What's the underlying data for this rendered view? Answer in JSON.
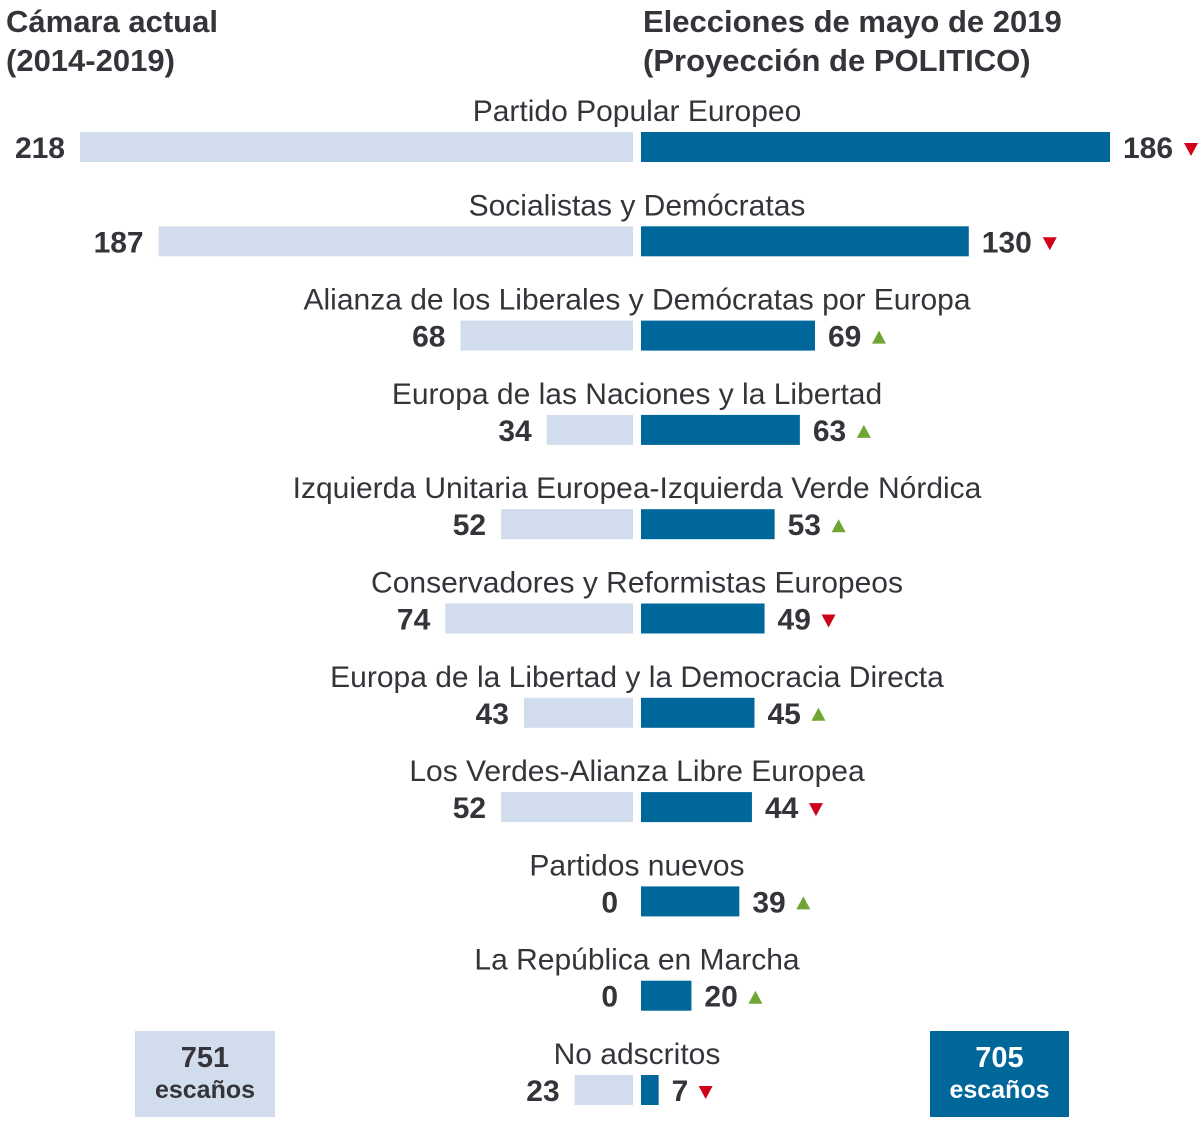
{
  "header": {
    "left_line1": "Cámara actual",
    "left_line2": "(2014-2019)",
    "right_line1": "Elecciones de mayo de 2019",
    "right_line2": "(Proyección de POLITICO)"
  },
  "colors": {
    "current": "#d1ddec",
    "projection": "#00679b",
    "up": "#6fa533",
    "down": "#d0021b",
    "text": "#35343a"
  },
  "totals": {
    "current_value": "751",
    "current_label": "escaños",
    "projection_value": "705",
    "projection_label": "escaños"
  },
  "chart_data": {
    "type": "bar",
    "orientation": "horizontal-butterfly",
    "categories": [
      "Partido Popular Europeo",
      "Socialistas y Demócratas",
      "Alianza de los Liberales y Demócratas por Europa",
      "Europa de las Naciones y la Libertad",
      "Izquierda Unitaria Europea-Izquierda Verde Nórdica",
      "Conservadores y Reformistas Europeos",
      "Europa de la Libertad y la Democracia Directa",
      "Los Verdes-Alianza Libre Europea",
      "Partidos nuevos",
      "La República en Marcha",
      "No adscritos"
    ],
    "series": [
      {
        "name": "Cámara actual (2014-2019)",
        "values": [
          218,
          187,
          68,
          34,
          52,
          74,
          43,
          52,
          0,
          0,
          23
        ]
      },
      {
        "name": "Elecciones de mayo de 2019 (Proyección de POLITICO)",
        "values": [
          186,
          130,
          69,
          63,
          53,
          49,
          45,
          44,
          39,
          20,
          7
        ]
      }
    ],
    "change": [
      "down",
      "down",
      "up",
      "up",
      "up",
      "down",
      "up",
      "down",
      "up",
      "up",
      "down"
    ]
  }
}
